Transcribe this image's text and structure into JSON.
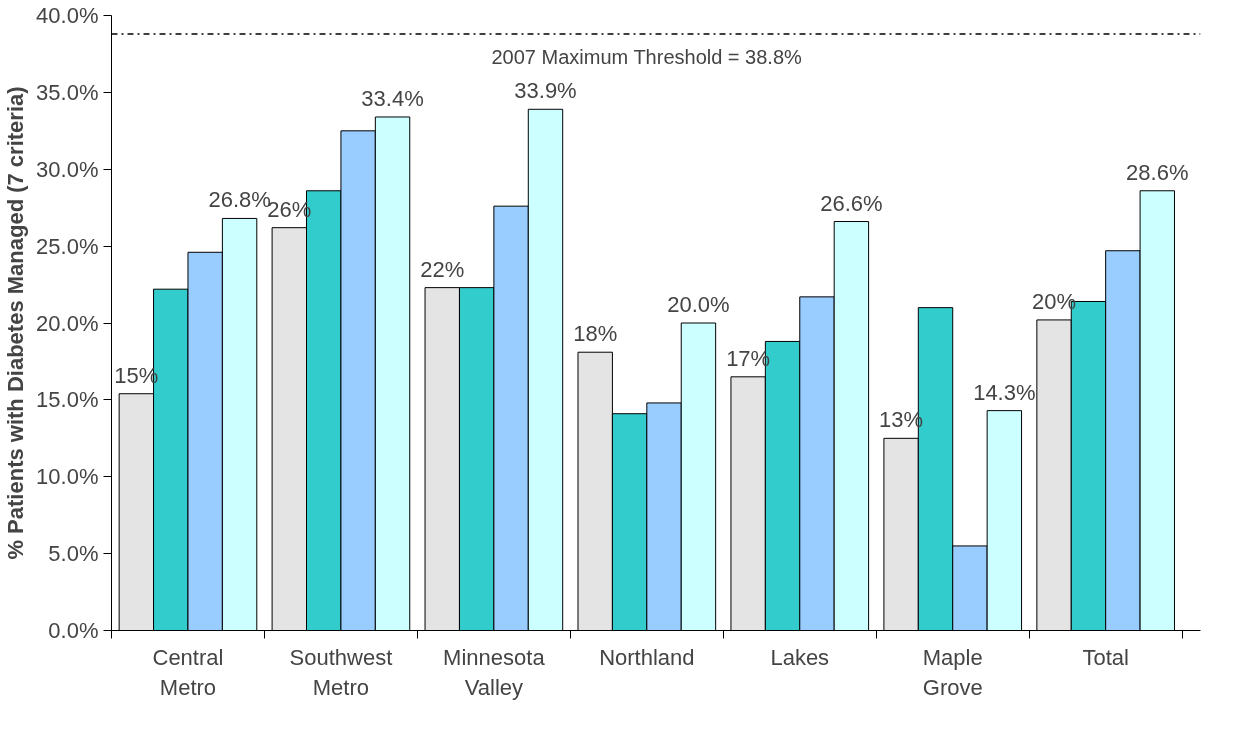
{
  "chart_data": {
    "type": "bar",
    "ylabel": "% Patients with Diabetes Managed (7 criteria)",
    "categories": [
      "Central\nMetro",
      "Southwest\nMetro",
      "Minnesota\nValley",
      "Northland",
      "Lakes",
      "Maple\nGrove",
      "Total"
    ],
    "series": [
      {
        "color": "#e4e4e4",
        "values": [
          15.4,
          26.2,
          22.3,
          18.1,
          16.5,
          12.5,
          20.2
        ],
        "value_labels": [
          "15%",
          "26%",
          "22%",
          "18%",
          "17%",
          "13%",
          "20%"
        ]
      },
      {
        "color": "#33cccc",
        "values": [
          22.2,
          28.6,
          22.3,
          14.1,
          18.8,
          21.0,
          21.4
        ]
      },
      {
        "color": "#99ccff",
        "values": [
          24.6,
          32.5,
          27.6,
          14.8,
          21.7,
          5.5,
          24.7
        ]
      },
      {
        "color": "#ccffff",
        "values": [
          26.8,
          33.4,
          33.9,
          20.0,
          26.6,
          14.3,
          28.6
        ],
        "value_labels": [
          "26.8%",
          "33.4%",
          "33.9%",
          "20.0%",
          "26.6%",
          "14.3%",
          "28.6%"
        ]
      }
    ],
    "ylim": [
      0,
      40
    ],
    "yticks": [
      {
        "value": 0,
        "label": "0.0%"
      },
      {
        "value": 5,
        "label": "5.0%"
      },
      {
        "value": 10,
        "label": "10.0%"
      },
      {
        "value": 15,
        "label": "15.0%"
      },
      {
        "value": 20,
        "label": "20.0%"
      },
      {
        "value": 25,
        "label": "25.0%"
      },
      {
        "value": 30,
        "label": "30.0%"
      },
      {
        "value": 35,
        "label": "35.0%"
      },
      {
        "value": 40,
        "label": "40.0%"
      }
    ],
    "ref_lines": [
      {
        "axis": "y",
        "value": 38.8,
        "label": "2007 Maximum Threshold = 38.8%",
        "color": "#000000",
        "line_style": "dashdot"
      }
    ],
    "grid": false
  }
}
